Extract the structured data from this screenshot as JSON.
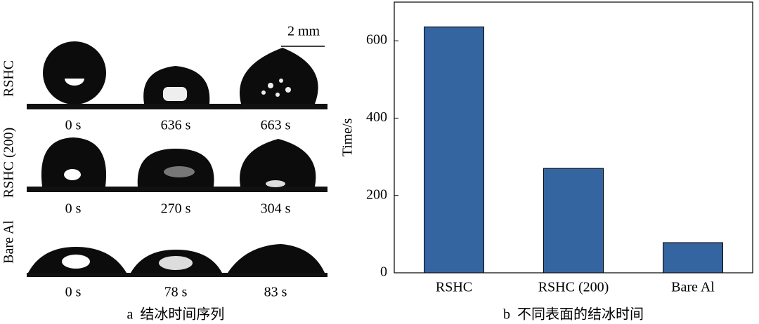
{
  "left_panel": {
    "scale_bar": "2 mm",
    "rows": [
      {
        "label": "RSHC",
        "times": [
          "0 s",
          "636 s",
          "663 s"
        ]
      },
      {
        "label": "RSHC (200)",
        "times": [
          "0 s",
          "270 s",
          "304 s"
        ]
      },
      {
        "label": "Bare Al",
        "times": [
          "0 s",
          "78 s",
          "83 s"
        ]
      }
    ],
    "caption": "a  结冰时间序列"
  },
  "chart_data": {
    "type": "bar",
    "categories": [
      "RSHC",
      "RSHC (200)",
      "Bare Al"
    ],
    "values": [
      636,
      270,
      78
    ],
    "color": "#3565a0",
    "ylabel": "Time/s",
    "ylim": [
      0,
      700
    ],
    "yticks": [
      0,
      200,
      400,
      600
    ],
    "grid": false,
    "caption": "b  不同表面的结冰时间"
  }
}
